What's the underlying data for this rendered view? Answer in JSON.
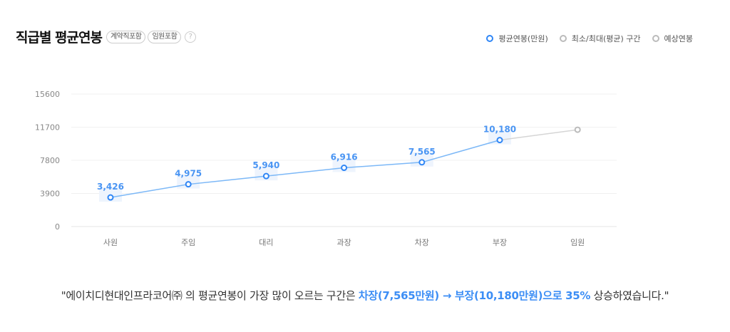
{
  "header": {
    "title": "직급별 평균연봉",
    "chips": [
      "계약직포함",
      "임원포함"
    ],
    "help": "?"
  },
  "legend": [
    {
      "label": "평균연봉(만원)",
      "color": "#2f86f6"
    },
    {
      "label": "최소/최대(평균) 구간",
      "color": "#bbbbbb"
    },
    {
      "label": "예상연봉",
      "color": "#bbbbbb"
    }
  ],
  "chart_data": {
    "type": "line",
    "title": "직급별 평균연봉",
    "xlabel": "",
    "ylabel": "평균연봉(만원)",
    "categories": [
      "사원",
      "주임",
      "대리",
      "과장",
      "차장",
      "부장",
      "임원"
    ],
    "series": [
      {
        "name": "평균연봉(만원)",
        "values": [
          3426,
          4975,
          5940,
          6916,
          7565,
          10180,
          null
        ],
        "labels": [
          "3,426",
          "4,975",
          "5,940",
          "6,916",
          "7,565",
          "10,180",
          ""
        ]
      },
      {
        "name": "예상연봉",
        "values": [
          null,
          null,
          null,
          null,
          null,
          10180,
          11400
        ]
      }
    ],
    "yticks": [
      0,
      3900,
      7800,
      11700,
      15600
    ],
    "ylim": [
      0,
      15600
    ],
    "grid": true,
    "legend_position": "top-right"
  },
  "footer": {
    "pre": "\"에이치디현대인프라코어㈜ 의 평균연봉이 가장 많이 오르는 구간은 ",
    "highlight": "차장(7,565만원) → 부장(10,180만원)으로 35%",
    "post": " 상승하였습니다.\""
  }
}
